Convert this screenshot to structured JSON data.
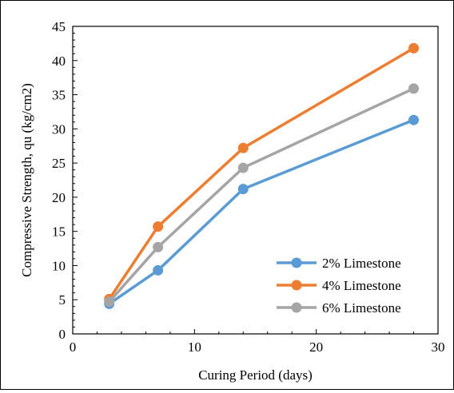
{
  "chart_data": {
    "type": "line",
    "title": "",
    "xlabel": "Curing Period (days)",
    "ylabel": "Compressive Strength, qu (kg/cm2)",
    "xlim": [
      0,
      30
    ],
    "ylim": [
      0,
      45
    ],
    "x_ticks": [
      "0",
      "10",
      "20",
      "30"
    ],
    "y_ticks": [
      "0",
      "5",
      "10",
      "15",
      "20",
      "25",
      "30",
      "35",
      "40",
      "45"
    ],
    "grid": false,
    "legend_position": "bottom-right",
    "x": [
      3,
      7,
      14,
      28
    ],
    "series": [
      {
        "name": "2% Limestone",
        "color": "#5B9BD5",
        "values": [
          4.4,
          9.3,
          21.2,
          31.3
        ]
      },
      {
        "name": "4% Limestone",
        "color": "#ED7D31",
        "values": [
          5.1,
          15.7,
          27.2,
          41.8
        ]
      },
      {
        "name": "6% Limestone",
        "color": "#A5A5A5",
        "values": [
          4.7,
          12.7,
          24.3,
          35.9
        ]
      }
    ]
  }
}
